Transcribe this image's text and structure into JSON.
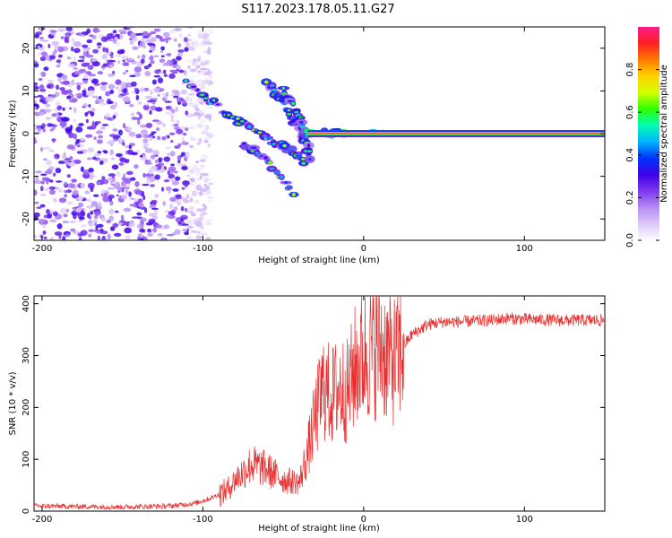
{
  "title": "S117.2023.178.05.11.G27",
  "chart_data": [
    {
      "type": "heatmap",
      "name": "spectrogram",
      "xlabel": "Height of straight line (km)",
      "ylabel": "Frequency (Hz)",
      "xlim": [
        -205,
        150
      ],
      "ylim": [
        -25,
        25
      ],
      "xticks": [
        -200,
        -100,
        0,
        100
      ],
      "yticks": [
        -20,
        -10,
        0,
        10,
        20
      ],
      "colorbar": {
        "label": "Normalized spectral amplitude",
        "range": [
          0,
          1
        ],
        "ticks": [
          0.0,
          0.2,
          0.4,
          0.6,
          0.8
        ],
        "tick_labels": [
          "0.0",
          "0.2",
          "0.4",
          "0.6",
          "0.8"
        ],
        "colormap": [
          "#ffffff",
          "#dcc8fa",
          "#b48cf5",
          "#7f37f0",
          "#3f00e8",
          "#0033ff",
          "#00b4ff",
          "#00ffb4",
          "#2eff00",
          "#d2ff00",
          "#ffd200",
          "#ff7a00",
          "#ff2020",
          "#ff1a8c"
        ]
      },
      "features": [
        {
          "kind": "noise",
          "x_range": [
            -205,
            -95
          ],
          "y_range": [
            -25,
            25
          ]
        },
        {
          "kind": "diagonal-arc",
          "points": [
            [
              -110,
              12
            ],
            [
              -85,
              5
            ],
            [
              -65,
              0
            ],
            [
              -50,
              -3
            ],
            [
              -35,
              -7
            ]
          ]
        },
        {
          "kind": "diagonal-arc",
          "points": [
            [
              -60,
              12
            ],
            [
              -48,
              6
            ],
            [
              -38,
              0
            ],
            [
              -32,
              -6
            ]
          ]
        },
        {
          "kind": "diagonal-arc",
          "points": [
            [
              -75,
              -2
            ],
            [
              -60,
              -6
            ],
            [
              -42,
              -15
            ]
          ]
        },
        {
          "kind": "diagonal-arc",
          "points": [
            [
              -50,
              10
            ],
            [
              -40,
              4
            ],
            [
              -35,
              -1
            ]
          ]
        },
        {
          "kind": "carrier",
          "x_range": [
            -35,
            150
          ],
          "y": 0,
          "peak_amplitude": 1.0
        }
      ]
    },
    {
      "type": "line",
      "name": "snr",
      "xlabel": "Height of straight line (km)",
      "ylabel": "SNR (10 * v/v)",
      "xlim": [
        -205,
        150
      ],
      "ylim": [
        0,
        415
      ],
      "xticks": [
        -200,
        -100,
        0,
        100
      ],
      "yticks": [
        0,
        100,
        200,
        300,
        400
      ],
      "color": "#e83030",
      "series": [
        {
          "name": "SNR",
          "x": [
            -205,
            -180,
            -150,
            -120,
            -105,
            -95,
            -85,
            -80,
            -70,
            -60,
            -50,
            -40,
            -35,
            -30,
            -25,
            -20,
            -15,
            -10,
            -5,
            0,
            5,
            10,
            15,
            20,
            25,
            30,
            40,
            50,
            60,
            80,
            90,
            100,
            120,
            150
          ],
          "y": [
            10,
            9,
            8,
            10,
            15,
            25,
            40,
            60,
            90,
            80,
            60,
            55,
            110,
            180,
            240,
            220,
            240,
            230,
            280,
            300,
            310,
            320,
            300,
            290,
            320,
            340,
            360,
            365,
            365,
            368,
            372,
            370,
            368,
            368
          ]
        }
      ]
    }
  ]
}
